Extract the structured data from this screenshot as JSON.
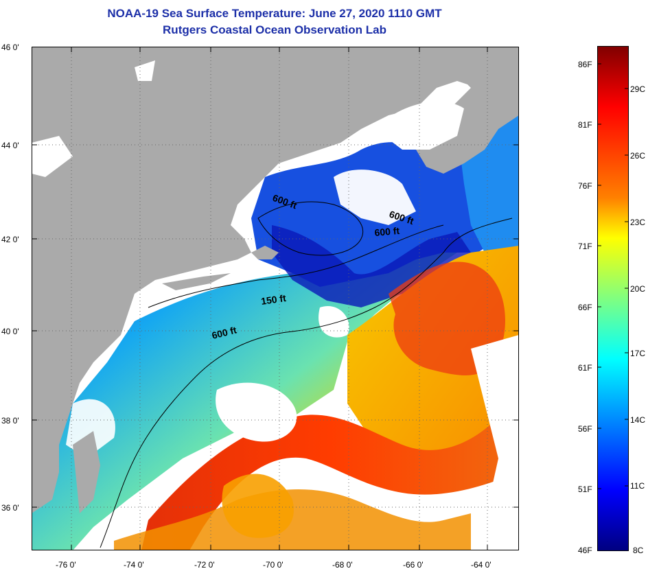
{
  "title": "NOAA-19 Sea Surface Temperature:  June 27, 2020 1110 GMT",
  "subtitle": "Rutgers Coastal Ocean Observation Lab",
  "lat_labels": [
    "46 0'",
    "44 0'",
    "42 0'",
    "40 0'",
    "38 0'",
    "36 0'"
  ],
  "lon_labels": [
    "-76 0'",
    "-74 0'",
    "-72 0'",
    "-70 0'",
    "-68 0'",
    "-66 0'",
    "-64 0'"
  ],
  "contour_labels": [
    "600 ft",
    "600 ft",
    "600 ft",
    "150 ft",
    "600 ft"
  ],
  "colorbar": {
    "fahrenheit": [
      "86F",
      "81F",
      "76F",
      "71F",
      "66F",
      "61F",
      "56F",
      "51F",
      "46F"
    ],
    "celsius": [
      "29C",
      "26C",
      "23C",
      "20C",
      "17C",
      "14C",
      "11C",
      "8C"
    ]
  },
  "colors": {
    "title": "#1c2fa8",
    "land": "#aaaaaa",
    "cloud": "#ffffff",
    "cold": "#00008f",
    "warm": "#d21e00"
  }
}
